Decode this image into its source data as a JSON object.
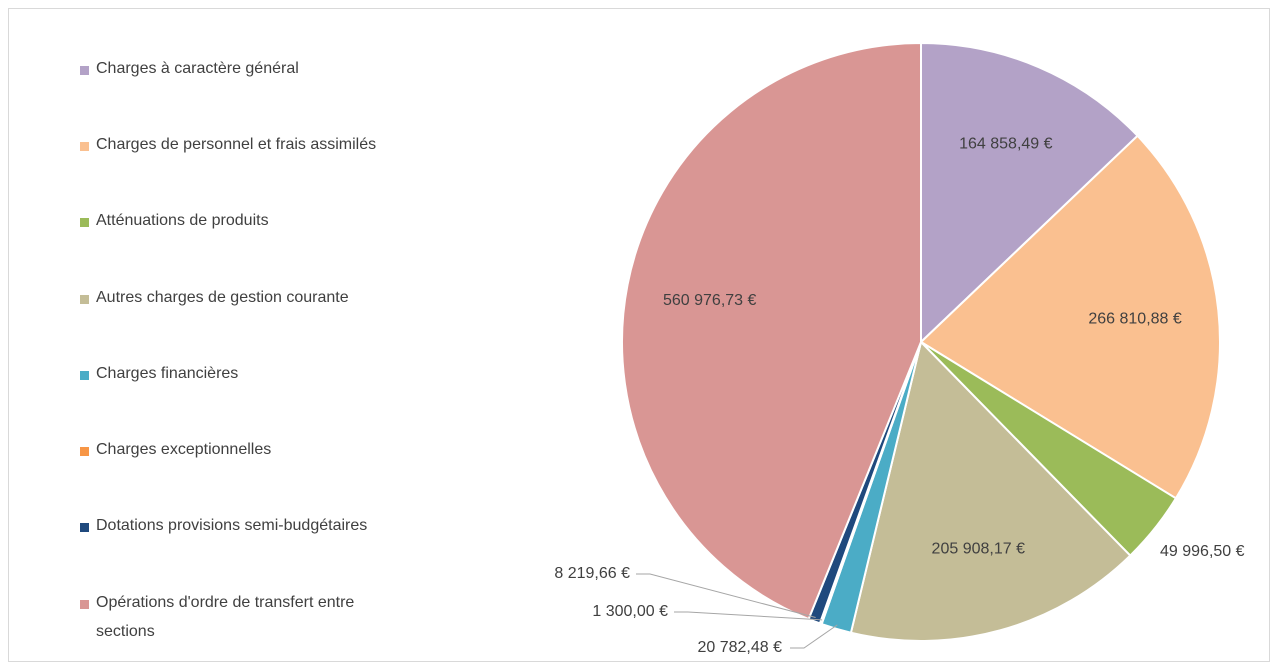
{
  "chart_data": {
    "type": "pie",
    "categories": [
      "Charges à caractère général",
      "Charges de personnel et frais assimilés",
      "Atténuations de produits",
      "Autres charges de gestion courante",
      "Charges financières",
      "Charges exceptionnelles",
      "Dotations provisions semi-budgétaires",
      "Opérations d'ordre de transfert entre sections"
    ],
    "values": [
      164858.49,
      266810.88,
      49996.5,
      205908.17,
      20782.48,
      1300.0,
      8219.66,
      560976.73
    ],
    "value_labels": [
      "164 858,49 €",
      "266 810,88 €",
      "49 996,50 €",
      "205 908,17 €",
      "20 782,48 €",
      "1 300,00 €",
      "8 219,66 €",
      "560 976,73 €"
    ],
    "colors": [
      "#b3a2c7",
      "#fac090",
      "#9bbb59",
      "#c4bd97",
      "#4bacc6",
      "#f79646",
      "#1f497d",
      "#d99694"
    ],
    "legend": "left"
  }
}
